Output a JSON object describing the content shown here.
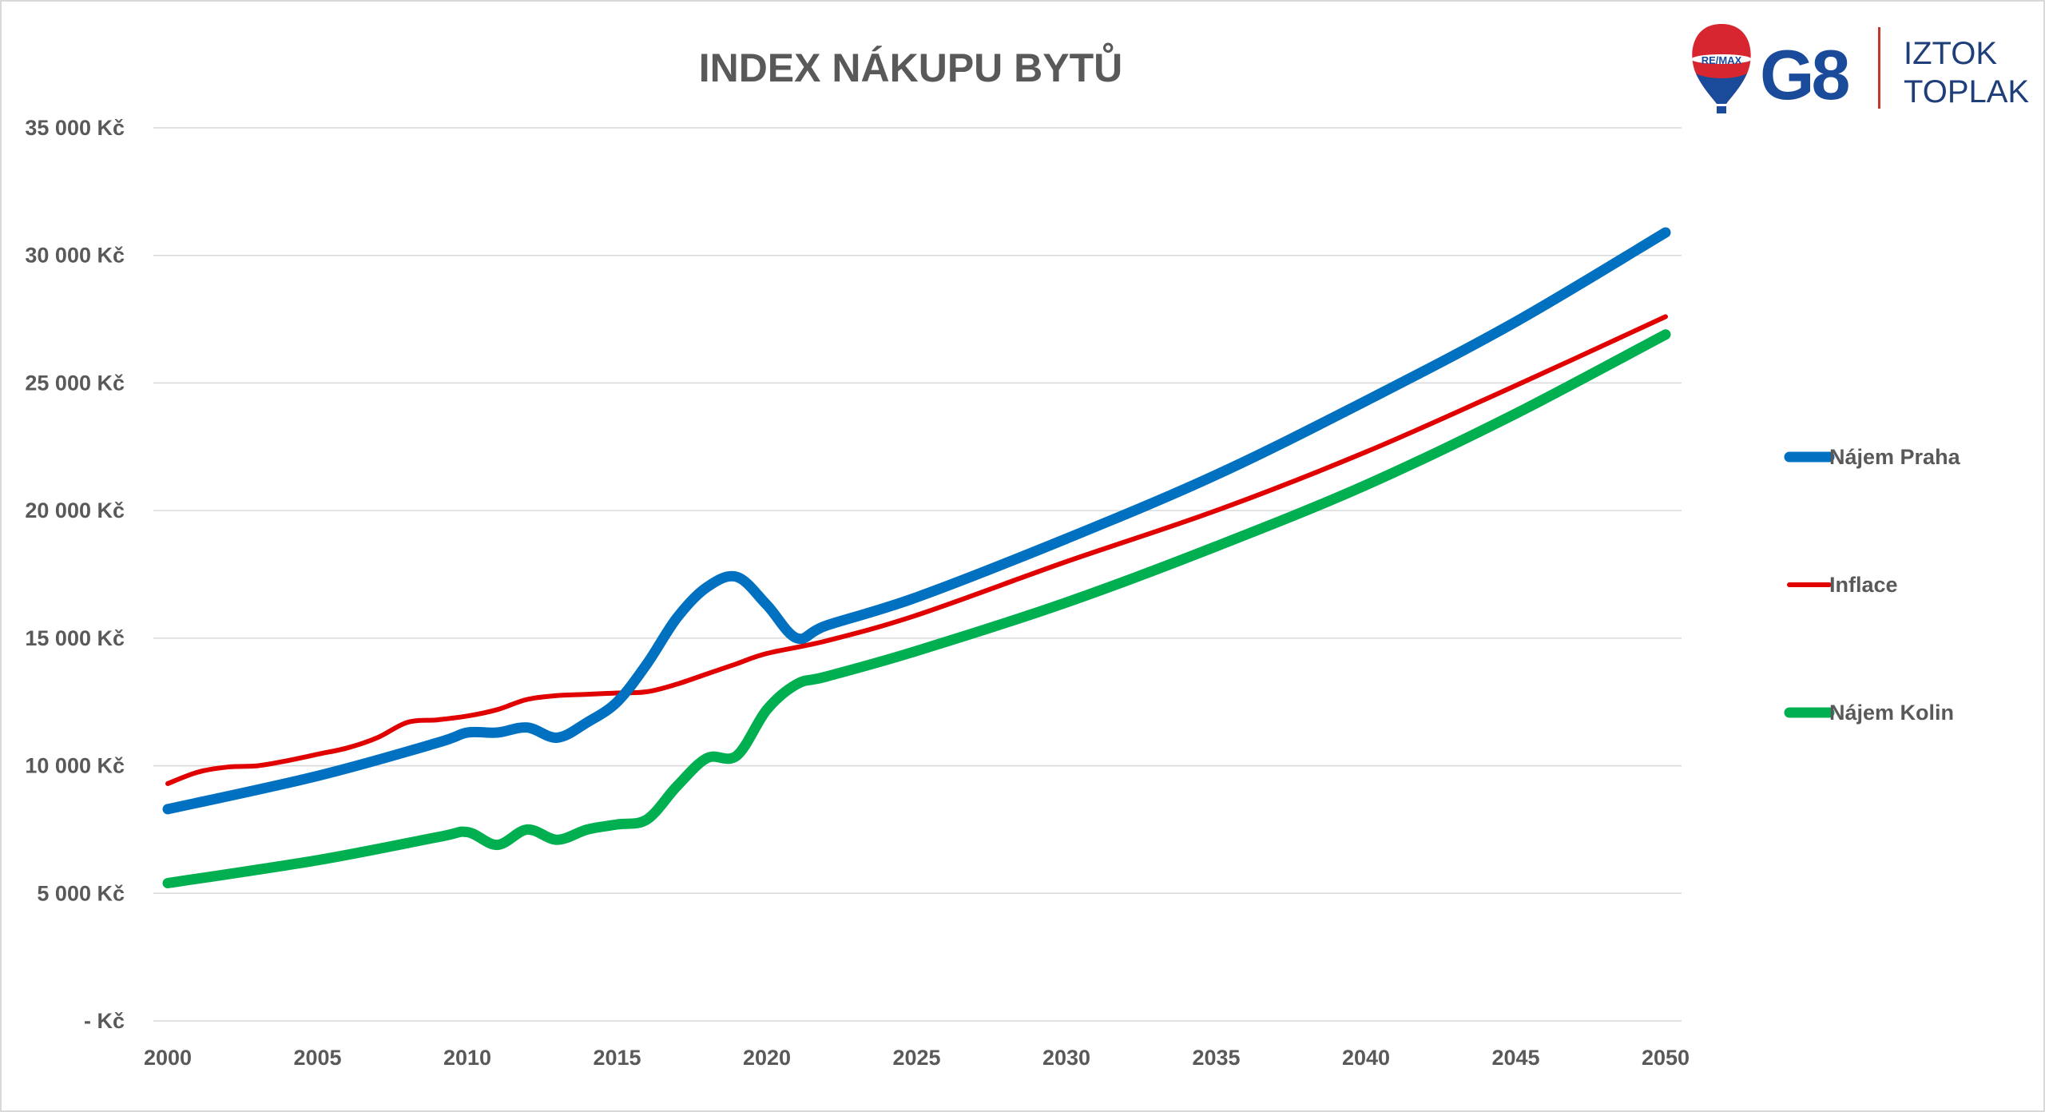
{
  "logo": {
    "balloon_text": "RE/MAX",
    "mark": "G8",
    "line1": "IZTOK",
    "line2": "TOPLAK",
    "colors": {
      "red": "#d7262f",
      "blue": "#1a4a9a",
      "divider": "#c0392b"
    }
  },
  "chart_data": {
    "type": "line",
    "title": "INDEX NÁKUPU BYTŮ",
    "xlabel": "",
    "ylabel": "",
    "xlim": [
      2000,
      2050
    ],
    "ylim": [
      0,
      35000
    ],
    "x_ticks": [
      "2000",
      "2005",
      "2010",
      "2015",
      "2020",
      "2025",
      "2030",
      "2035",
      "2040",
      "2045",
      "2050"
    ],
    "x_tick_values": [
      2000,
      2005,
      2010,
      2015,
      2020,
      2025,
      2030,
      2035,
      2040,
      2045,
      2050
    ],
    "y_ticks": [
      "-   Kč",
      "5 000 Kč",
      "10 000 Kč",
      "15 000 Kč",
      "20 000 Kč",
      "25 000 Kč",
      "30 000 Kč",
      "35 000 Kč"
    ],
    "y_tick_values": [
      0,
      5000,
      10000,
      15000,
      20000,
      25000,
      30000,
      35000
    ],
    "grid": true,
    "legend_position": "right",
    "series": [
      {
        "name": "Nájem Praha",
        "color": "#0070c0",
        "x": [
          2000,
          2005,
          2009,
          2010,
          2011,
          2012,
          2013,
          2014,
          2015,
          2016,
          2017,
          2018,
          2019,
          2020,
          2021,
          2022,
          2025,
          2030,
          2035,
          2040,
          2045,
          2050
        ],
        "y": [
          8300,
          9600,
          10900,
          11300,
          11300,
          11500,
          11100,
          11700,
          12500,
          14000,
          15800,
          17000,
          17400,
          16300,
          15000,
          15500,
          16600,
          18900,
          21400,
          24300,
          27400,
          30900
        ]
      },
      {
        "name": "Inflace",
        "color": "#e00000",
        "x": [
          2000,
          2001,
          2002,
          2003,
          2004,
          2005,
          2006,
          2007,
          2008,
          2009,
          2010,
          2011,
          2012,
          2013,
          2014,
          2015,
          2016,
          2017,
          2018,
          2019,
          2020,
          2022,
          2025,
          2030,
          2035,
          2040,
          2045,
          2050
        ],
        "y": [
          9300,
          9750,
          9950,
          10000,
          10200,
          10450,
          10700,
          11100,
          11700,
          11800,
          11950,
          12200,
          12600,
          12750,
          12800,
          12850,
          12900,
          13200,
          13600,
          14000,
          14400,
          14900,
          15900,
          18000,
          20000,
          22300,
          24900,
          27600
        ]
      },
      {
        "name": "Nájem Kolin",
        "color": "#00b050",
        "x": [
          2000,
          2005,
          2009,
          2010,
          2011,
          2012,
          2013,
          2014,
          2015,
          2016,
          2017,
          2018,
          2019,
          2020,
          2021,
          2022,
          2025,
          2030,
          2035,
          2040,
          2045,
          2050
        ],
        "y": [
          5400,
          6300,
          7200,
          7400,
          6900,
          7500,
          7100,
          7500,
          7700,
          7900,
          9200,
          10300,
          10400,
          12200,
          13200,
          13500,
          14500,
          16400,
          18600,
          21000,
          23800,
          26900
        ]
      }
    ]
  }
}
